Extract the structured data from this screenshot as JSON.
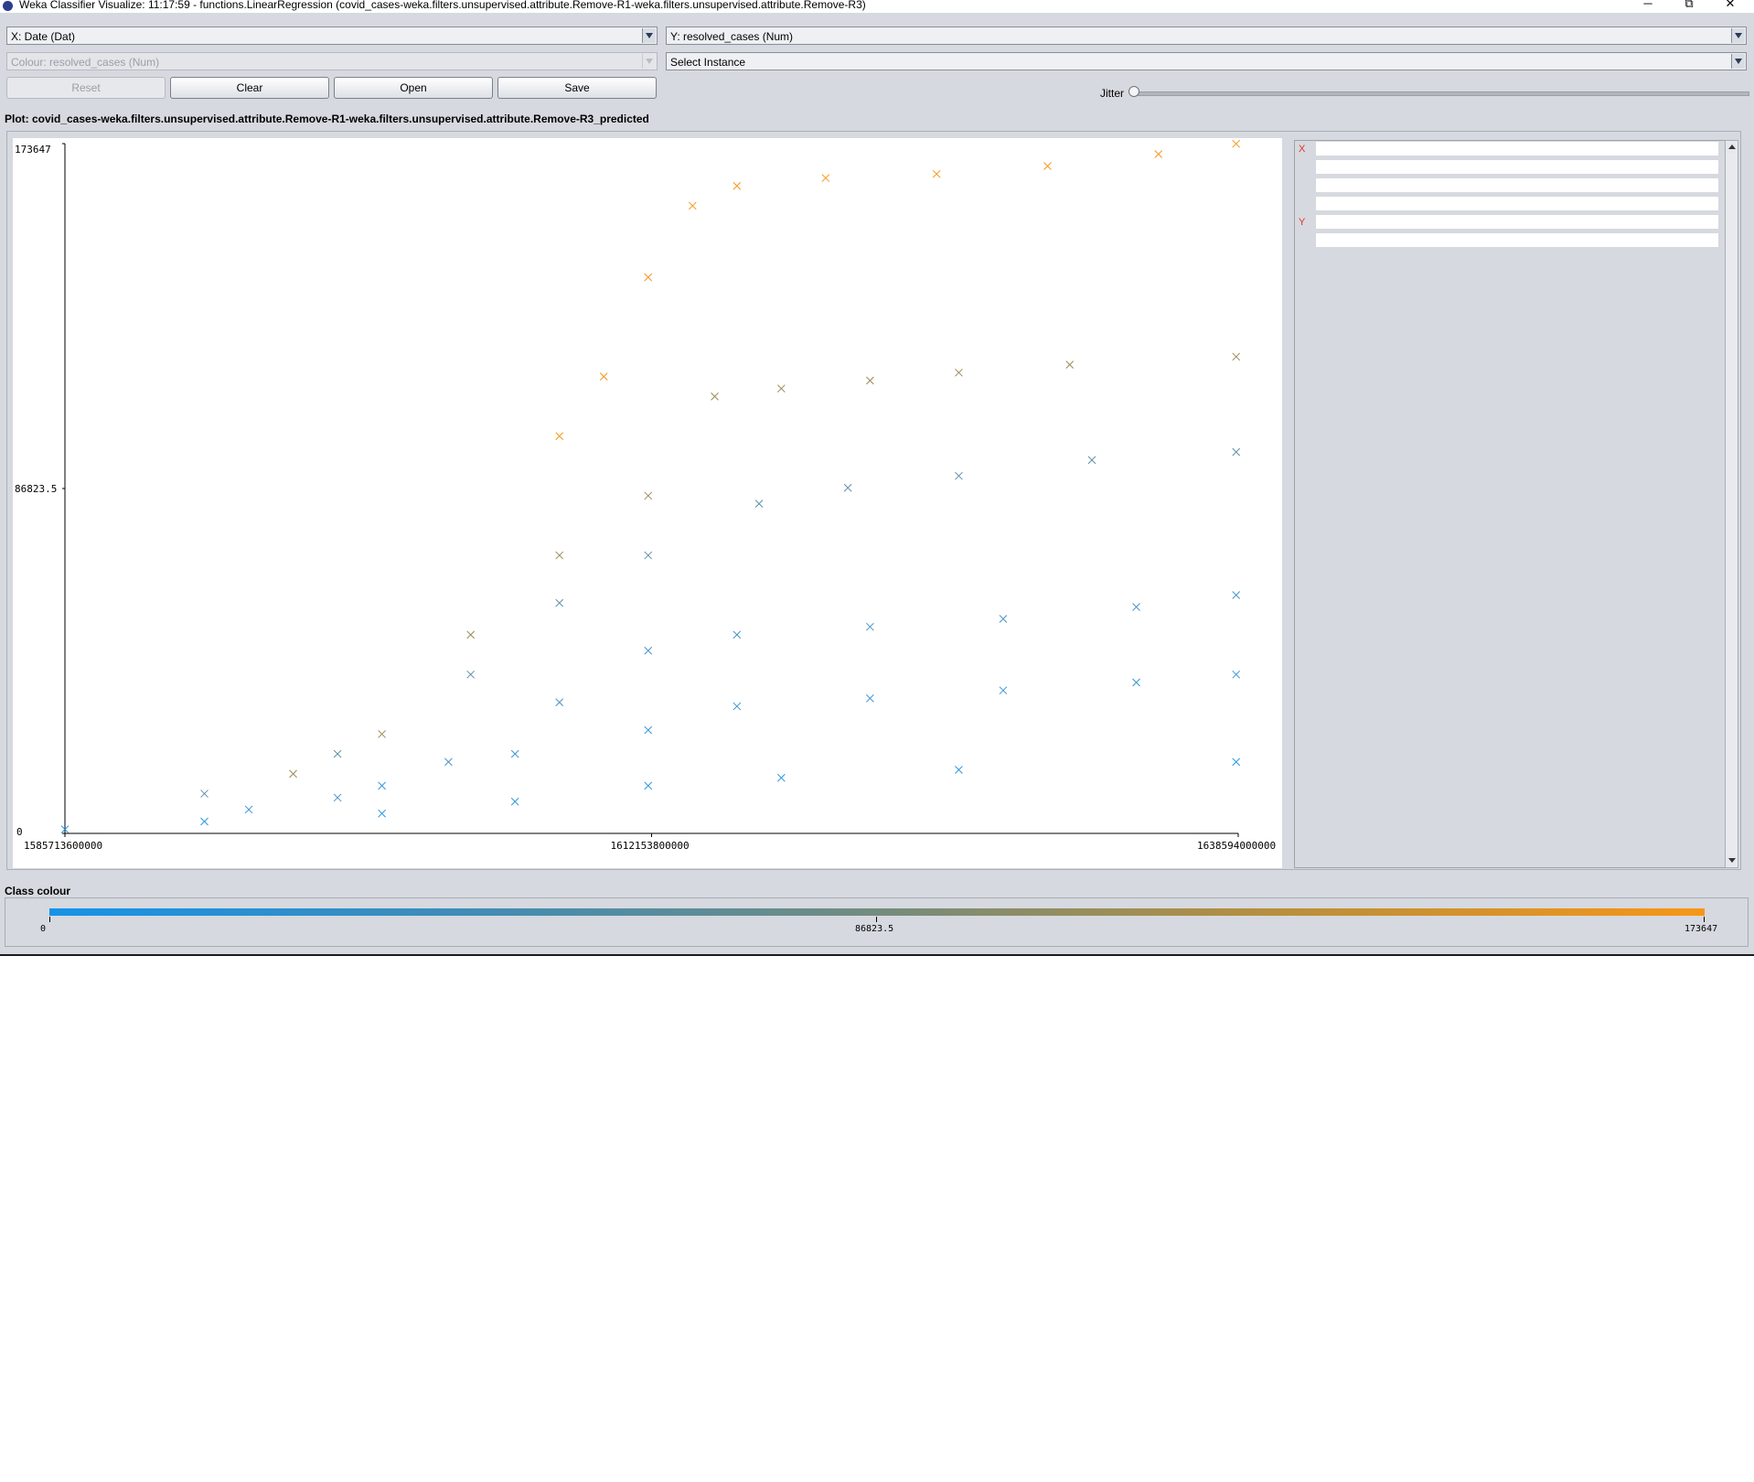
{
  "window": {
    "title": "Weka Classifier Visualize: 11:17:59 - functions.LinearRegression (covid_cases-weka.filters.unsupervised.attribute.Remove-R1-weka.filters.unsupervised.attribute.Remove-R3)",
    "minimize": "─",
    "maximize": "⧉",
    "close": "✕"
  },
  "controls": {
    "x_axis": "X: Date (Dat)",
    "y_axis": "Y: resolved_cases (Num)",
    "colour": "Colour: resolved_cases (Num)",
    "select_instance": "Select Instance",
    "reset": "Reset",
    "clear": "Clear",
    "open": "Open",
    "save": "Save",
    "jitter_label": "Jitter",
    "jitter_value": 0
  },
  "plot": {
    "title": "Plot: covid_cases-weka.filters.unsupervised.attribute.Remove-R1-weka.filters.unsupervised.attribute.Remove-R3_predicted"
  },
  "chart_data": {
    "type": "scatter",
    "xlim": [
      1585713600000,
      1638594000000
    ],
    "ylim": [
      0,
      173647
    ],
    "x_ticks": [
      "1585713600000",
      "1612153800000",
      "1638594000000"
    ],
    "y_ticks": [
      "173647",
      "86823.5",
      "0"
    ],
    "series": [
      {
        "color": "#f79616",
        "points": [
          [
            1608000000000,
            100000
          ],
          [
            1610000000000,
            115000
          ],
          [
            1612000000000,
            140000
          ],
          [
            1614000000000,
            158000
          ],
          [
            1616000000000,
            163000
          ],
          [
            1620000000000,
            165000
          ],
          [
            1625000000000,
            166000
          ],
          [
            1630000000000,
            168000
          ],
          [
            1635000000000,
            171000
          ],
          [
            1638500000000,
            173600
          ]
        ]
      },
      {
        "color": "#9a8a55",
        "points": [
          [
            1596000000000,
            15000
          ],
          [
            1600000000000,
            25000
          ],
          [
            1604000000000,
            50000
          ],
          [
            1608000000000,
            70000
          ],
          [
            1612000000000,
            85000
          ],
          [
            1615000000000,
            110000
          ],
          [
            1618000000000,
            112000
          ],
          [
            1622000000000,
            114000
          ],
          [
            1626000000000,
            116000
          ],
          [
            1631000000000,
            118000
          ],
          [
            1638500000000,
            120000
          ]
        ]
      },
      {
        "color": "#5f8fa8",
        "points": [
          [
            1592000000000,
            10000
          ],
          [
            1598000000000,
            20000
          ],
          [
            1604000000000,
            40000
          ],
          [
            1608000000000,
            58000
          ],
          [
            1612000000000,
            70000
          ],
          [
            1617000000000,
            83000
          ],
          [
            1621000000000,
            87000
          ],
          [
            1626000000000,
            90000
          ],
          [
            1632000000000,
            94000
          ],
          [
            1638500000000,
            96000
          ]
        ]
      },
      {
        "color": "#4a93c8",
        "points": [
          [
            1598000000000,
            9000
          ],
          [
            1603000000000,
            18000
          ],
          [
            1608000000000,
            33000
          ],
          [
            1612000000000,
            46000
          ],
          [
            1616000000000,
            50000
          ],
          [
            1622000000000,
            52000
          ],
          [
            1628000000000,
            54000
          ],
          [
            1634000000000,
            57000
          ],
          [
            1638500000000,
            60000
          ]
        ]
      },
      {
        "color": "#3a95d6",
        "points": [
          [
            1594000000000,
            6000
          ],
          [
            1600000000000,
            12000
          ],
          [
            1606000000000,
            20000
          ],
          [
            1612000000000,
            26000
          ],
          [
            1616000000000,
            32000
          ],
          [
            1622000000000,
            34000
          ],
          [
            1628000000000,
            36000
          ],
          [
            1634000000000,
            38000
          ],
          [
            1638500000000,
            40000
          ]
        ]
      },
      {
        "color": "#2a98e2",
        "points": [
          [
            1585713600000,
            1000
          ],
          [
            1592000000000,
            3000
          ],
          [
            1600000000000,
            5000
          ],
          [
            1606000000000,
            8000
          ],
          [
            1612000000000,
            12000
          ],
          [
            1618000000000,
            14000
          ],
          [
            1626000000000,
            16000
          ],
          [
            1638500000000,
            18000
          ]
        ]
      }
    ]
  },
  "attribute_panel": {
    "x_marker": "X",
    "y_marker": "Y"
  },
  "class_colour": {
    "label": "Class colour",
    "ticks": [
      "0",
      "86823.5",
      "173647"
    ]
  }
}
